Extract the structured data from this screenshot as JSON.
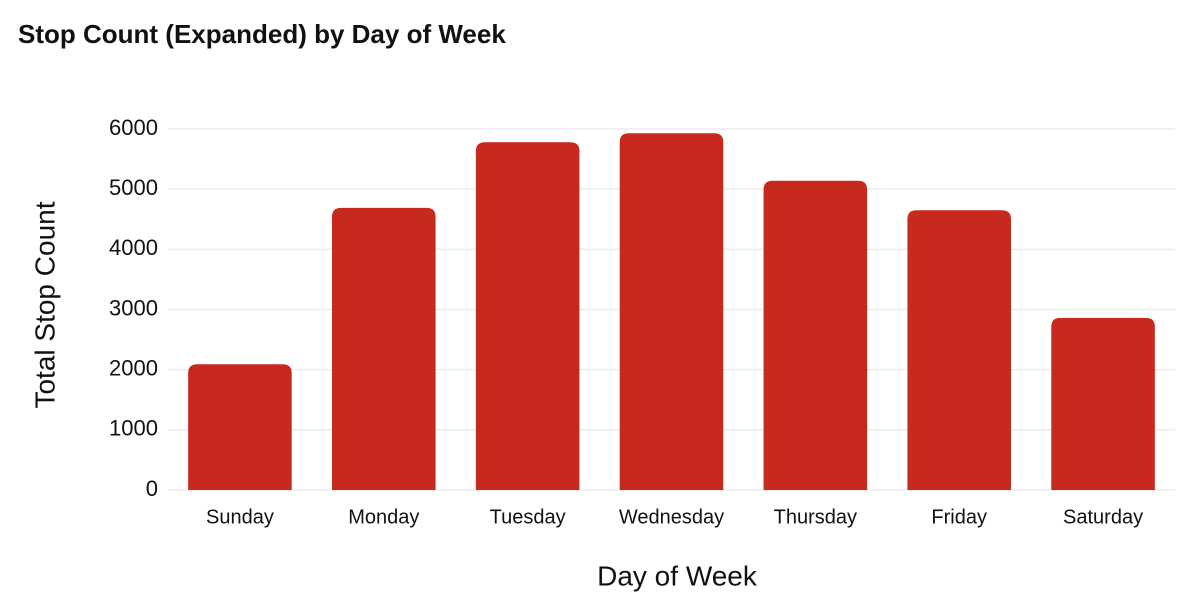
{
  "chart_data": {
    "type": "bar",
    "title": "Stop Count (Expanded) by Day of Week",
    "x_label": "Day of Week",
    "y_label": "Total Stop Count",
    "categories": [
      "Sunday",
      "Monday",
      "Tuesday",
      "Wednesday",
      "Thursday",
      "Friday",
      "Saturday"
    ],
    "values": [
      2090,
      4690,
      5780,
      5930,
      5140,
      4650,
      2860
    ],
    "color": "#c8291f",
    "ylim": [
      0,
      6000
    ],
    "yticks": [
      0,
      1000,
      2000,
      3000,
      4000,
      5000,
      6000
    ],
    "grid": true
  }
}
